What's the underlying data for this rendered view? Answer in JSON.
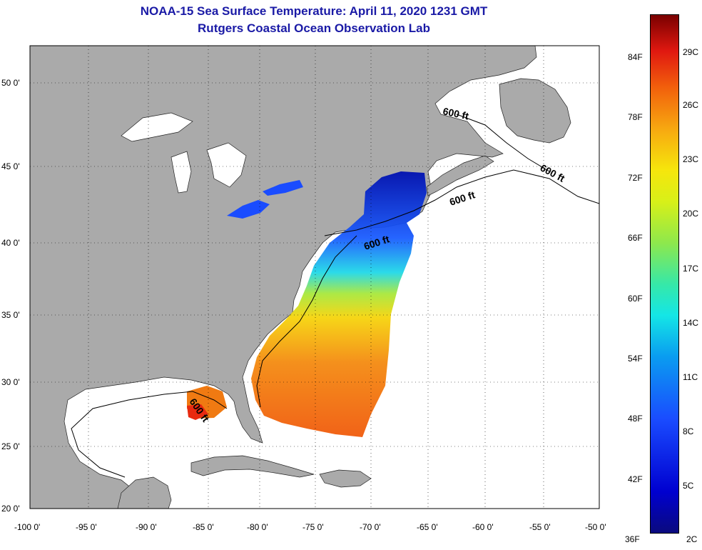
{
  "header": {
    "title": "NOAA-15 Sea Surface Temperature:  April 11, 2020 1231 GMT",
    "subtitle": "Rutgers Coastal Ocean Observation Lab"
  },
  "axes": {
    "x_ticks": [
      "-100 0'",
      "-95 0'",
      "-90 0'",
      "-85 0'",
      "-80 0'",
      "-75 0'",
      "-70 0'",
      "-65 0'",
      "-60 0'",
      "-55 0'",
      "-50 0'"
    ],
    "y_ticks": [
      "50 0'",
      "45 0'",
      "40 0'",
      "35 0'",
      "30 0'",
      "25 0'",
      "20 0'"
    ]
  },
  "contours": {
    "label": "600 ft"
  },
  "colorbar": {
    "fahrenheit": [
      "84F",
      "78F",
      "72F",
      "66F",
      "60F",
      "54F",
      "48F",
      "42F",
      "36F"
    ],
    "celsius": [
      "29C",
      "26C",
      "23C",
      "20C",
      "17C",
      "14C",
      "11C",
      "8C",
      "5C",
      "2C"
    ]
  },
  "colors": {
    "land": "#aaaaaa",
    "ocean": "#ffffff",
    "title": "#1a1aa6",
    "lakes_sst": "#1a4cff"
  }
}
